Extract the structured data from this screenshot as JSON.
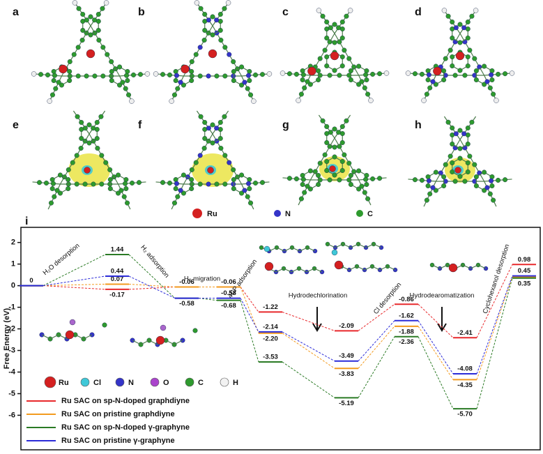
{
  "panel_labels": [
    "a",
    "b",
    "c",
    "d",
    "e",
    "f",
    "g",
    "h"
  ],
  "atom_legend_top": [
    "Ru",
    "N",
    "C"
  ],
  "chart_data": {
    "type": "energy_levels",
    "panel_label": "i",
    "y_label": "Free Energy (eV)",
    "ylim": [
      -7.6,
      2.7
    ],
    "yticks": [
      2,
      1,
      0,
      -1,
      -2,
      -3,
      -4,
      -5,
      -6
    ],
    "steps": [
      "H₂O desorption",
      "H₂ adsorption",
      "H₂ migration",
      "4CP adsorption",
      "Hydrodechlorination",
      "Cl desorption",
      "Hydrodearomatization",
      "Cyclohexanol desorption"
    ],
    "atom_legend": [
      "Ru",
      "Cl",
      "N",
      "O",
      "C",
      "H"
    ],
    "series": [
      {
        "name": "Ru SAC on sp-N-doped graphdiyne",
        "color": "#e8282b",
        "values": [
          0,
          -0.17,
          -0.06,
          -0.06,
          -1.22,
          -2.09,
          -0.86,
          -2.41,
          0.98
        ],
        "value_labels": [
          "0",
          "-0.17",
          "-0.06",
          "-0.06",
          "-1.22",
          "-2.09",
          "-0.86",
          "-2.41",
          "0.98"
        ]
      },
      {
        "name": "Ru SAC on pristine graphdiyne",
        "color": "#f39a1e",
        "values": [
          0,
          0.07,
          -0.06,
          -0.06,
          -2.2,
          -3.83,
          -1.88,
          -4.35,
          0.4
        ],
        "value_labels": [
          null,
          "0.07",
          null,
          null,
          "-2.20",
          "-3.83",
          "-1.88",
          "-4.35",
          null
        ]
      },
      {
        "name": "Ru SAC on sp-N-doped γ-graphyne",
        "color": "#2a7a24",
        "values": [
          0,
          1.44,
          -0.58,
          -0.68,
          -3.53,
          -5.19,
          -2.36,
          -5.7,
          0.35
        ],
        "value_labels": [
          null,
          "1.44",
          "-0.58",
          "-0.68",
          "-3.53",
          "-5.19",
          "-2.36",
          "-5.70",
          "0.35"
        ]
      },
      {
        "name": "Ru SAC on pristine γ-graphyne",
        "color": "#2b2bd8",
        "values": [
          0,
          0.44,
          -0.58,
          -0.58,
          -2.14,
          -3.49,
          -1.62,
          -4.08,
          0.45
        ],
        "value_labels": [
          null,
          "0.44",
          null,
          "-0.58",
          "-2.14",
          "-3.49",
          "-1.62",
          "-4.08",
          "0.45"
        ]
      }
    ]
  }
}
